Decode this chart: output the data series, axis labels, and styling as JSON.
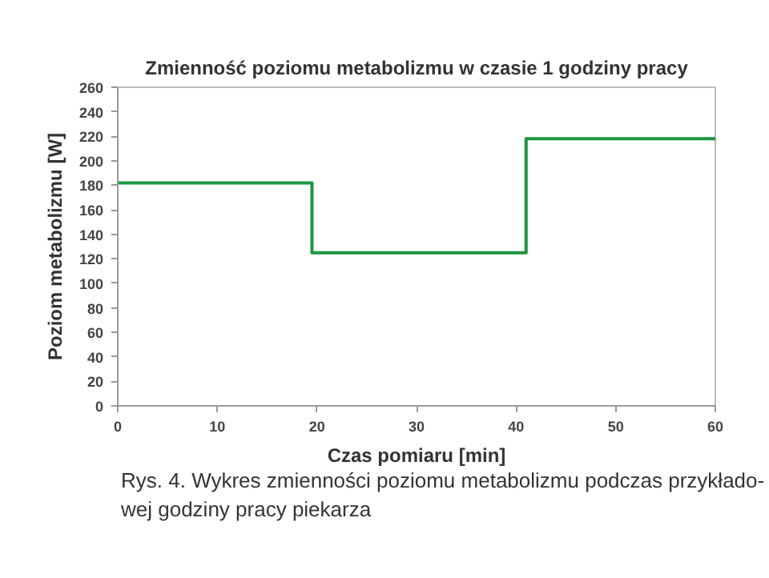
{
  "chart_data": {
    "type": "step",
    "title": "Zmienność poziomu metabolizmu w czasie 1 godziny pracy",
    "xlabel": "Czas pomiaru [min]",
    "ylabel": "Poziom metabolizmu [W]",
    "x": [
      0,
      19.5,
      41,
      60
    ],
    "series": [
      {
        "color": "#1a9641",
        "values": [
          182,
          125,
          218,
          218
        ]
      }
    ],
    "xlim": [
      0,
      60
    ],
    "xticks": [
      0,
      10,
      20,
      30,
      40,
      50,
      60
    ],
    "ylim": [
      0,
      260
    ],
    "yticks": [
      0,
      20,
      40,
      60,
      80,
      100,
      120,
      140,
      160,
      180,
      200,
      220,
      240,
      260
    ],
    "grid": false,
    "annotations": [
      "Rys. 4. Wykres zmienności poziomu metabolizmu podczas przykłado-\nwej godziny pracy piekarza"
    ]
  }
}
